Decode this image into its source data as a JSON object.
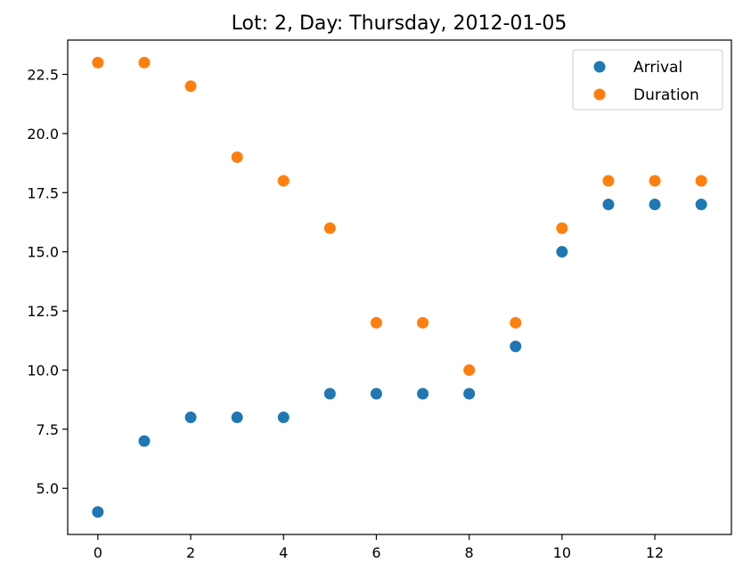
{
  "chart_data": {
    "type": "scatter",
    "title": "Lot: 2, Day: Thursday, 2012-01-05",
    "xlabel": "",
    "ylabel": "",
    "xlim": [
      -0.65,
      13.65
    ],
    "ylim": [
      3.05,
      23.95
    ],
    "x_ticks": [
      0,
      2,
      4,
      6,
      8,
      10,
      12
    ],
    "x_tick_labels": [
      "0",
      "2",
      "4",
      "6",
      "8",
      "10",
      "12"
    ],
    "y_ticks": [
      5.0,
      7.5,
      10.0,
      12.5,
      15.0,
      17.5,
      20.0,
      22.5
    ],
    "y_tick_labels": [
      "5.0",
      "7.5",
      "10.0",
      "12.5",
      "15.0",
      "17.5",
      "20.0",
      "22.5"
    ],
    "grid": false,
    "legend_position": "top-right",
    "x": [
      0,
      1,
      2,
      3,
      4,
      5,
      6,
      7,
      8,
      9,
      10,
      11,
      12,
      13
    ],
    "series": [
      {
        "name": "Arrival",
        "color": "#1f77b4",
        "values": [
          4,
          7,
          8,
          8,
          8,
          9,
          9,
          9,
          9,
          11,
          15,
          17,
          17,
          17
        ]
      },
      {
        "name": "Duration",
        "color": "#ff7f0e",
        "values": [
          23,
          23,
          22,
          19,
          18,
          16,
          12,
          12,
          10,
          12,
          16,
          18,
          18,
          18
        ]
      }
    ]
  }
}
